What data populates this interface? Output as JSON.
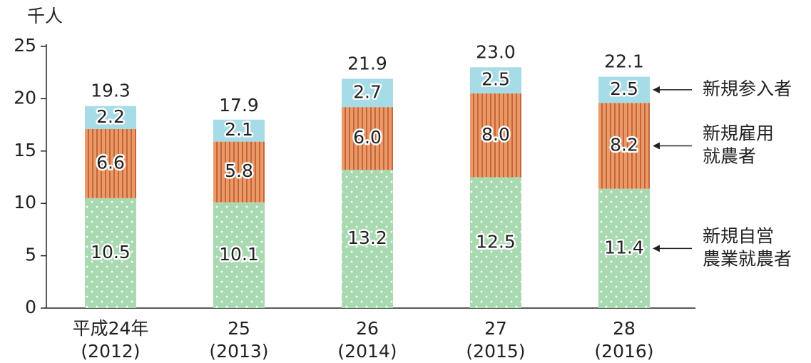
{
  "chart_data": {
    "type": "stacked-bar",
    "y_label": "千人",
    "categories": [
      [
        "平成24年",
        "(2012)"
      ],
      [
        "25",
        "(2013)"
      ],
      [
        "26",
        "(2014)"
      ],
      [
        "27",
        "(2015)"
      ],
      [
        "28",
        "(2016)"
      ]
    ],
    "series": [
      {
        "name": [
          "新規自営",
          "農業就農者"
        ],
        "color": "#a9d9b1",
        "values": [
          10.5,
          10.1,
          13.2,
          12.5,
          11.4
        ],
        "value_labels": [
          "10.5",
          "10.1",
          "13.2",
          "12.5",
          "11.4"
        ]
      },
      {
        "name": [
          "新規雇用",
          "就農者"
        ],
        "color": "#eb9a66",
        "values": [
          6.6,
          5.8,
          6.0,
          8.0,
          8.2
        ],
        "value_labels": [
          "6.6",
          "5.8",
          "6.0",
          "8.0",
          "8.2"
        ]
      },
      {
        "name": [
          "新規参入者"
        ],
        "color": "#a6dce8",
        "values": [
          2.2,
          2.1,
          2.7,
          2.5,
          2.5
        ],
        "value_labels": [
          "2.2",
          "2.1",
          "2.7",
          "2.5",
          "2.5"
        ]
      }
    ],
    "totals": [
      19.3,
      17.9,
      21.9,
      23.0,
      22.1
    ],
    "total_labels": [
      "19.3",
      "17.9",
      "21.9",
      "23.0",
      "22.1"
    ],
    "ylim": [
      0,
      25
    ],
    "yticks": [
      0,
      5,
      10,
      15,
      20,
      25
    ],
    "grid": false
  }
}
